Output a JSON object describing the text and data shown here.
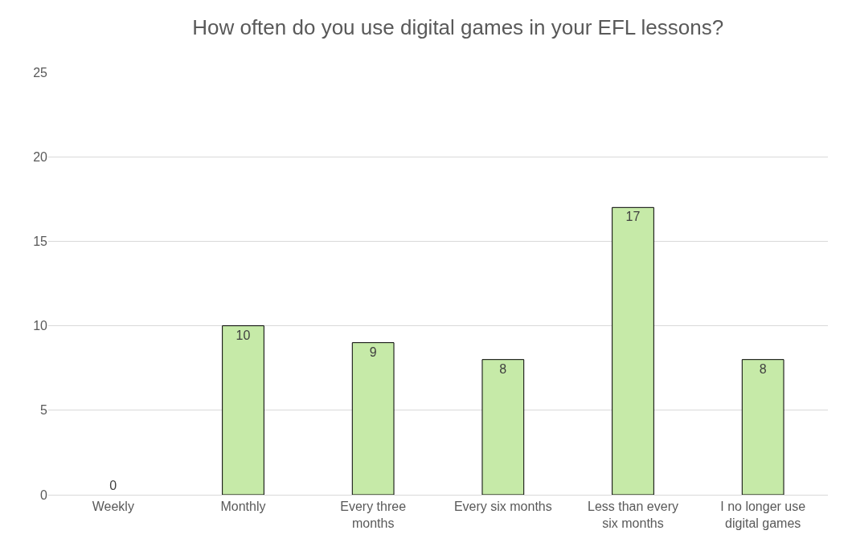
{
  "chart_data": {
    "type": "bar",
    "title": "How often do you use digital games in your EFL lessons?",
    "categories": [
      "Weekly",
      "Monthly",
      "Every three months",
      "Every six months",
      "Less than every six months",
      "I no longer use digital games"
    ],
    "values": [
      0,
      10,
      9,
      8,
      17,
      8
    ],
    "color": "#c6eaa8",
    "ylim": [
      0,
      25
    ],
    "yticks": [
      0,
      5,
      10,
      15,
      20,
      25
    ],
    "grid": "y",
    "data_labels": true
  }
}
